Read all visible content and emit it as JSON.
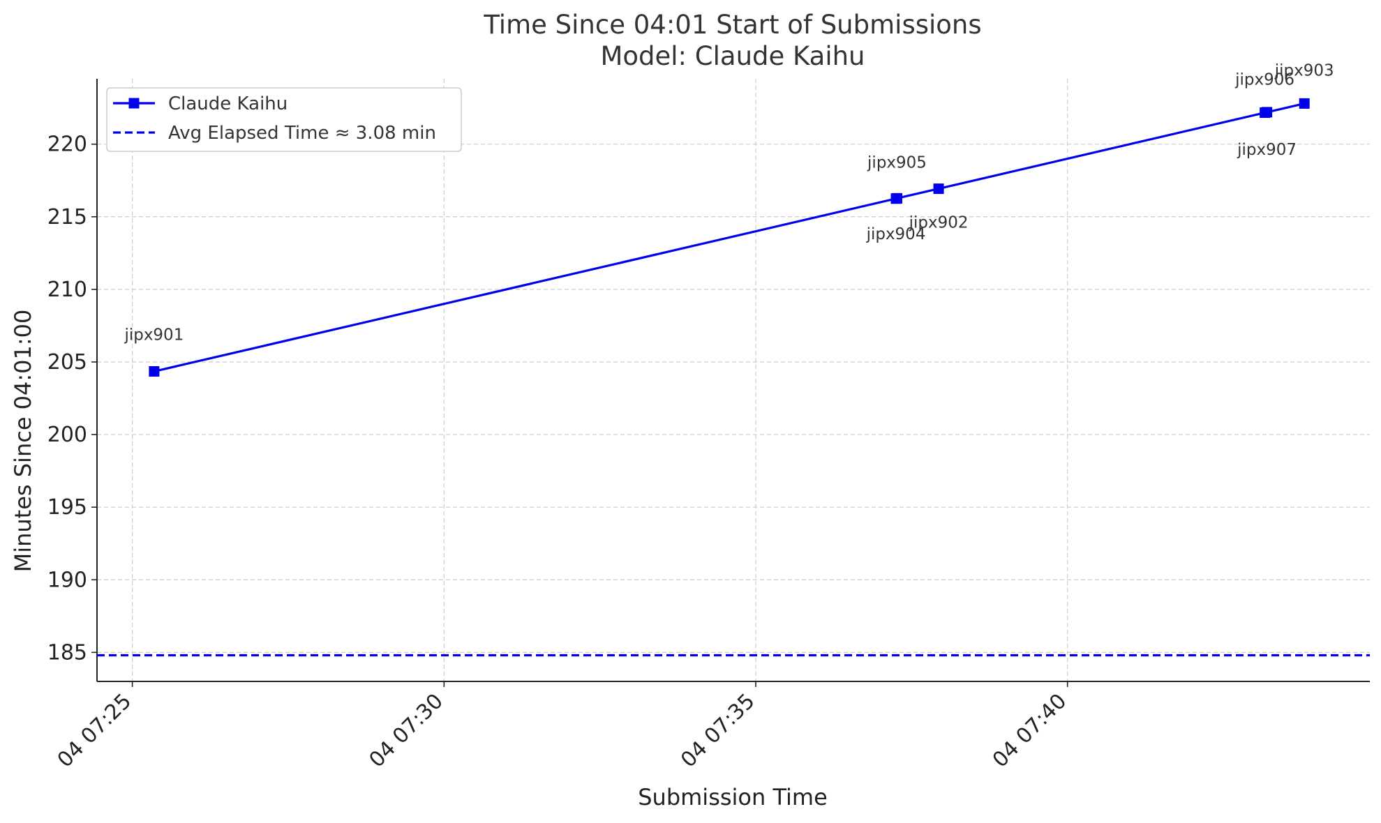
{
  "chart_data": {
    "type": "line",
    "title": "Time Since 04:01 Start of Submissions",
    "subtitle": "Model: Claude Kaihu",
    "xlabel": "Submission Time",
    "ylabel": "Minutes Since 04:01:00",
    "x_ticks": [
      "04 07:25",
      "04 07:30",
      "04 07:35",
      "04 07:40"
    ],
    "x_tick_values": [
      "07:25:00",
      "07:30:00",
      "07:35:00",
      "07:40:00"
    ],
    "xlim": [
      "07:24:26",
      "07:44:51"
    ],
    "y_ticks": [
      185,
      190,
      195,
      200,
      205,
      210,
      215,
      220
    ],
    "ylim": [
      183,
      224.5
    ],
    "grid": true,
    "legend_position": "upper-left",
    "series": [
      {
        "name": "Claude Kaihu",
        "color": "#0000ee",
        "marker": "square",
        "points": [
          {
            "x": "07:25:21",
            "y": 204.35,
            "label": "jipx901"
          },
          {
            "x": "07:37:15",
            "y": 216.25,
            "label": "jipx904"
          },
          {
            "x": "07:37:16",
            "y": 216.27,
            "label": "jipx905"
          },
          {
            "x": "07:37:56",
            "y": 216.93,
            "label": "jipx902"
          },
          {
            "x": "07:43:10",
            "y": 222.17,
            "label": "jipx906"
          },
          {
            "x": "07:43:12",
            "y": 222.2,
            "label": "jipx907"
          },
          {
            "x": "07:43:48",
            "y": 222.8,
            "label": "jipx903"
          }
        ]
      }
    ],
    "reference_line": {
      "name": "Avg Elapsed Time ≈ 3.08 min",
      "y": 184.8,
      "style": "dashed",
      "color": "#0000ee"
    }
  }
}
